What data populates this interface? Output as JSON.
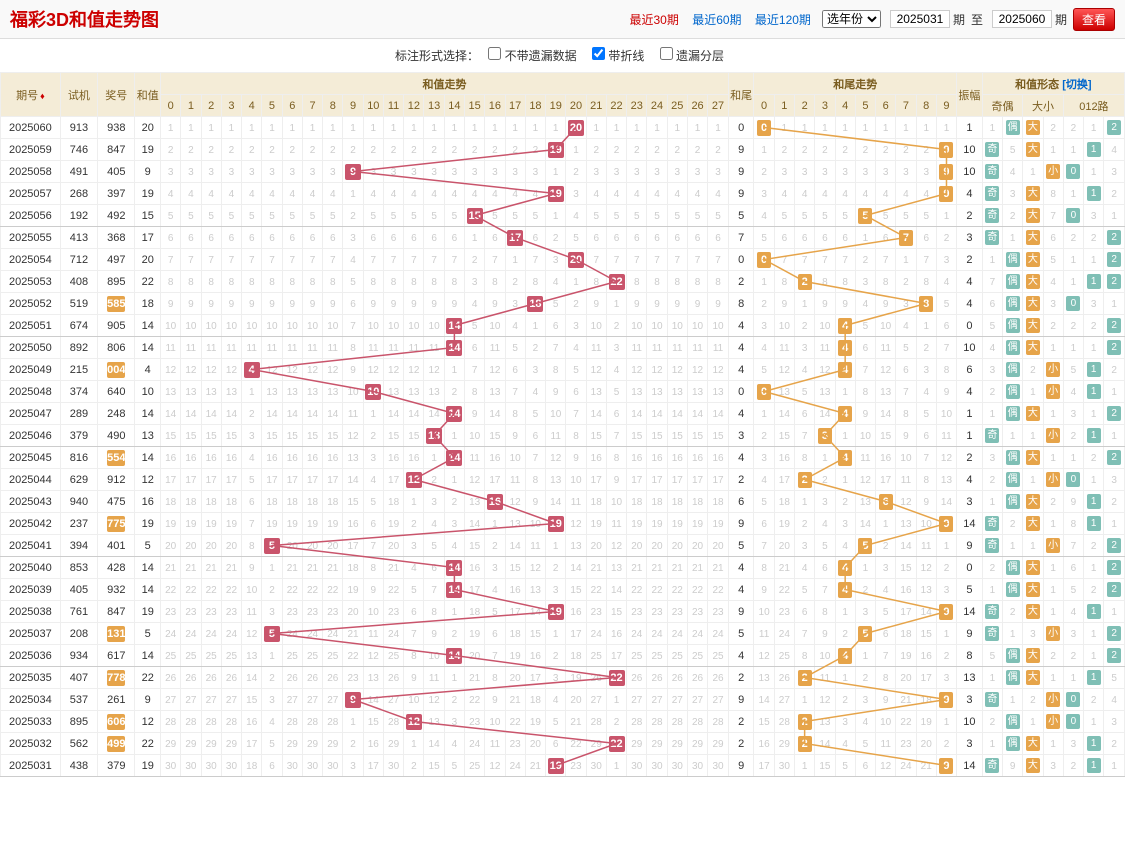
{
  "title": "福彩3D和值走势图",
  "periodLinks": [
    {
      "label": "最近30期",
      "active": true
    },
    {
      "label": "最近60期",
      "active": false
    },
    {
      "label": "最近120期",
      "active": false
    }
  ],
  "yearSelectLabel": "选年份",
  "fromIssue": "2025031",
  "toIssue": "2025060",
  "periodWord": "期",
  "toWord": "至",
  "viewBtn": "查看",
  "optionsLabel": "标注形式选择：",
  "options": [
    {
      "label": "不带遗漏数据",
      "checked": false
    },
    {
      "label": "带折线",
      "checked": true
    },
    {
      "label": "遗漏分层",
      "checked": false
    }
  ],
  "headers": {
    "issue": "期号",
    "shi": "试机",
    "jiang": "奖号",
    "hezhi": "和值",
    "hezhiTrend": "和值走势",
    "hewei": "和尾",
    "heweiTrend": "和尾走势",
    "zhenfu": "振幅",
    "shape": "和值形态",
    "switch": "[切换]",
    "qiou": "奇偶",
    "daxiao": "大小",
    "lu012": "012路"
  },
  "sumRange": {
    "min": 0,
    "max": 27
  },
  "tailRange": {
    "min": 0,
    "max": 9
  },
  "colors": {
    "hitRed": "#c9546b",
    "hitGold": "#e6a44a",
    "miss": "#cccccc",
    "teal": "#7fbfb5",
    "headerBg": "#f4ecd7",
    "headerText": "#7a5d20",
    "lineRed": "#c9546b",
    "lineGold": "#e6a44a"
  },
  "rows": [
    {
      "issue": "2025060",
      "shi": "913",
      "jiang": "938",
      "jiangHL": false,
      "sum": 20,
      "tail": 0,
      "amp": 1,
      "qi": 1,
      "ou": "偶",
      "da": "大",
      "xiao": 2,
      "l0": 2,
      "l1": 1,
      "l2": "2"
    },
    {
      "issue": "2025059",
      "shi": "746",
      "jiang": "847",
      "jiangHL": false,
      "sum": 19,
      "tail": 9,
      "amp": 10,
      "qi": "奇",
      "ou": 5,
      "da": "大",
      "xiao": 1,
      "l0": 1,
      "l1": "1",
      "l2": 4
    },
    {
      "issue": "2025058",
      "shi": "491",
      "jiang": "405",
      "jiangHL": false,
      "sum": 9,
      "tail": 9,
      "amp": 10,
      "qi": "奇",
      "ou": 4,
      "da": 1,
      "xiao": "小",
      "l0": "0",
      "l1": 1,
      "l2": 3
    },
    {
      "issue": "2025057",
      "shi": "268",
      "jiang": "397",
      "jiangHL": false,
      "sum": 19,
      "tail": 9,
      "amp": 4,
      "qi": "奇",
      "ou": 3,
      "da": "大",
      "xiao": 8,
      "l0": 1,
      "l1": "1",
      "l2": 2
    },
    {
      "issue": "2025056",
      "shi": "192",
      "jiang": "492",
      "jiangHL": false,
      "sum": 15,
      "tail": 5,
      "amp": 2,
      "qi": "奇",
      "ou": 2,
      "da": "大",
      "xiao": 7,
      "l0": "0",
      "l1": 3,
      "l2": 1
    },
    {
      "issue": "2025055",
      "shi": "413",
      "jiang": "368",
      "jiangHL": false,
      "sum": 17,
      "tail": 7,
      "amp": 3,
      "qi": "奇",
      "ou": 1,
      "da": "大",
      "xiao": 6,
      "l0": 2,
      "l1": 2,
      "l2": "2"
    },
    {
      "issue": "2025054",
      "shi": "712",
      "jiang": "497",
      "jiangHL": false,
      "sum": 20,
      "tail": 0,
      "amp": 2,
      "qi": 1,
      "ou": "偶",
      "da": "大",
      "xiao": 5,
      "l0": 1,
      "l1": 1,
      "l2": "2"
    },
    {
      "issue": "2025053",
      "shi": "408",
      "jiang": "895",
      "jiangHL": false,
      "sum": 22,
      "tail": 2,
      "amp": 4,
      "qi": 7,
      "ou": "偶",
      "da": "大",
      "xiao": 4,
      "l0": 1,
      "l1": "1",
      "l2": "2"
    },
    {
      "issue": "2025052",
      "shi": "519",
      "jiang": "585",
      "jiangHL": true,
      "sum": 18,
      "tail": 8,
      "amp": 4,
      "qi": 6,
      "ou": "偶",
      "da": "大",
      "xiao": 3,
      "l0": "0",
      "l1": 3,
      "l2": 1
    },
    {
      "issue": "2025051",
      "shi": "674",
      "jiang": "905",
      "jiangHL": false,
      "sum": 14,
      "tail": 4,
      "amp": 0,
      "qi": 5,
      "ou": "偶",
      "da": "大",
      "xiao": 2,
      "l0": 2,
      "l1": 2,
      "l2": "2"
    },
    {
      "issue": "2025050",
      "shi": "892",
      "jiang": "806",
      "jiangHL": false,
      "sum": 14,
      "tail": 4,
      "amp": 10,
      "qi": 4,
      "ou": "偶",
      "da": "大",
      "xiao": 1,
      "l0": 1,
      "l1": 1,
      "l2": "2"
    },
    {
      "issue": "2025049",
      "shi": "215",
      "jiang": "004",
      "jiangHL": true,
      "sum": 4,
      "tail": 4,
      "amp": 6,
      "qi": 3,
      "ou": "偶",
      "da": 2,
      "xiao": "小",
      "xiaoHL": false,
      "l0": 5,
      "l1": "1",
      "l2": 2
    },
    {
      "issue": "2025048",
      "shi": "374",
      "jiang": "640",
      "jiangHL": false,
      "sum": 10,
      "tail": 0,
      "amp": 4,
      "qi": 2,
      "ou": "偶",
      "da": 1,
      "xiao": "小",
      "l0": 4,
      "l1": "1",
      "l2": 1
    },
    {
      "issue": "2025047",
      "shi": "289",
      "jiang": "248",
      "jiangHL": false,
      "sum": 14,
      "tail": 4,
      "amp": 1,
      "qi": 1,
      "ou": "偶",
      "da": "大",
      "xiao": 1,
      "l0": 3,
      "l1": 1,
      "l2": "2"
    },
    {
      "issue": "2025046",
      "shi": "379",
      "jiang": "490",
      "jiangHL": false,
      "sum": 13,
      "tail": 3,
      "amp": 1,
      "qi": "奇",
      "ou": 1,
      "da": 1,
      "xiao": "小",
      "l0": 2,
      "l1": "1",
      "l2": 1
    },
    {
      "issue": "2025045",
      "shi": "816",
      "jiang": "554",
      "jiangHL": true,
      "sum": 14,
      "tail": 4,
      "amp": 2,
      "qi": 3,
      "ou": "偶",
      "da": "大",
      "xiao": 1,
      "l0": 1,
      "l1": 2,
      "l2": "2"
    },
    {
      "issue": "2025044",
      "shi": "629",
      "jiang": "912",
      "jiangHL": false,
      "sum": 12,
      "tail": 2,
      "amp": 4,
      "qi": 2,
      "ou": "偶",
      "da": 1,
      "xiao": "小",
      "l0": "0",
      "l1": 1,
      "l2": 3
    },
    {
      "issue": "2025043",
      "shi": "940",
      "jiang": "475",
      "jiangHL": false,
      "sum": 16,
      "tail": 6,
      "amp": 3,
      "qi": 1,
      "ou": "偶",
      "da": "大",
      "xiao": 2,
      "l0": 9,
      "l1": "1",
      "l2": 2
    },
    {
      "issue": "2025042",
      "shi": "237",
      "jiang": "775",
      "jiangHL": true,
      "sum": 19,
      "tail": 9,
      "amp": 14,
      "qi": "奇",
      "ou": 2,
      "da": "大",
      "xiao": 1,
      "l0": 8,
      "l1": "1",
      "l2": 1
    },
    {
      "issue": "2025041",
      "shi": "394",
      "jiang": "401",
      "jiangHL": false,
      "sum": 5,
      "tail": 5,
      "amp": 9,
      "qi": "奇",
      "ou": 1,
      "da": 1,
      "xiao": "小",
      "l0": 7,
      "l1": 2,
      "l2": "2"
    },
    {
      "issue": "2025040",
      "shi": "853",
      "jiang": "428",
      "jiangHL": false,
      "sum": 14,
      "tail": 4,
      "amp": 0,
      "qi": 2,
      "ou": "偶",
      "da": "大",
      "xiao": 1,
      "l0": 6,
      "l1": 1,
      "l2": "2"
    },
    {
      "issue": "2025039",
      "shi": "405",
      "jiang": "932",
      "jiangHL": false,
      "sum": 14,
      "tail": 4,
      "amp": 5,
      "qi": 1,
      "ou": "偶",
      "da": "大",
      "xiao": 1,
      "l0": 5,
      "l1": 2,
      "l2": "2"
    },
    {
      "issue": "2025038",
      "shi": "761",
      "jiang": "847",
      "jiangHL": false,
      "sum": 19,
      "tail": 9,
      "amp": 14,
      "qi": "奇",
      "ou": 2,
      "da": "大",
      "xiao": 1,
      "l0": 4,
      "l1": "1",
      "l2": 1
    },
    {
      "issue": "2025037",
      "shi": "208",
      "jiang": "131",
      "jiangHL": true,
      "sum": 5,
      "tail": 5,
      "amp": 9,
      "qi": "奇",
      "ou": 1,
      "da": 3,
      "xiao": "小",
      "l0": 3,
      "l1": 1,
      "l2": "2"
    },
    {
      "issue": "2025036",
      "shi": "934",
      "jiang": "617",
      "jiangHL": false,
      "sum": 14,
      "tail": 4,
      "amp": 8,
      "qi": 5,
      "ou": "偶",
      "da": "大",
      "xiao": 2,
      "l0": 2,
      "l1": 1,
      "l2": "2"
    },
    {
      "issue": "2025035",
      "shi": "407",
      "jiang": "778",
      "jiangHL": true,
      "sum": 22,
      "tail": 2,
      "amp": 13,
      "qi": 1,
      "ou": "偶",
      "da": "大",
      "xiao": 1,
      "l0": 1,
      "l1": "1",
      "l2": 5
    },
    {
      "issue": "2025034",
      "shi": "537",
      "jiang": "261",
      "jiangHL": false,
      "sum": 9,
      "tail": 9,
      "amp": 3,
      "qi": "奇",
      "ou": 1,
      "da": 2,
      "xiao": "小",
      "l0": "0",
      "l1": 2,
      "l2": 4
    },
    {
      "issue": "2025033",
      "shi": "895",
      "jiang": "606",
      "jiangHL": true,
      "sum": 12,
      "tail": 2,
      "amp": 10,
      "qi": 2,
      "ou": "偶",
      "da": 1,
      "xiao": "小",
      "l0": "0",
      "l1": 1,
      "l2": 3
    },
    {
      "issue": "2025032",
      "shi": "562",
      "jiang": "499",
      "jiangHL": true,
      "sum": 22,
      "tail": 2,
      "amp": 3,
      "qi": 1,
      "ou": "偶",
      "da": "大",
      "xiao": 1,
      "l0": 3,
      "l1": "1",
      "l2": 2
    },
    {
      "issue": "2025031",
      "shi": "438",
      "jiang": "379",
      "jiangHL": false,
      "sum": 19,
      "tail": 9,
      "amp": 14,
      "qi": "奇",
      "ou": 9,
      "da": "大",
      "xiao": 3,
      "l0": 2,
      "l1": "1",
      "l2": 1
    }
  ]
}
